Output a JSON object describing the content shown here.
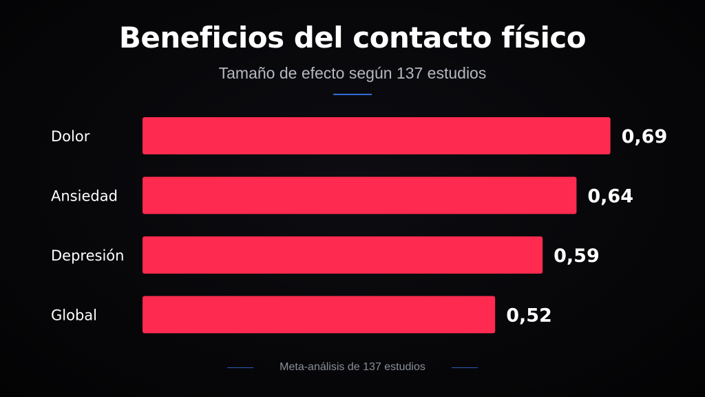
{
  "header": {
    "title": "Beneficios del contacto físico",
    "subtitle": "Tamaño de efecto según 137 estudios"
  },
  "footer": {
    "note": "Meta-análisis de 137 estudios"
  },
  "colors": {
    "background": "#060608",
    "bar": "#ff2a4f",
    "accent": "#2f6fd6",
    "label": "#ffffff",
    "subtitle": "#b4b8c0",
    "footer": "#8a8f98"
  },
  "chart_data": {
    "type": "bar",
    "orientation": "horizontal",
    "categories": [
      "Dolor",
      "Ansiedad",
      "Depresión",
      "Global"
    ],
    "values": [
      0.69,
      0.64,
      0.59,
      0.52
    ],
    "value_labels": [
      "0,69",
      "0,64",
      "0,59",
      "0,52"
    ],
    "title": "Beneficios del contacto físico",
    "subtitle": "Tamaño de efecto según 137 estudios",
    "xlabel": "",
    "ylabel": "",
    "grid": false,
    "legend": "none"
  }
}
